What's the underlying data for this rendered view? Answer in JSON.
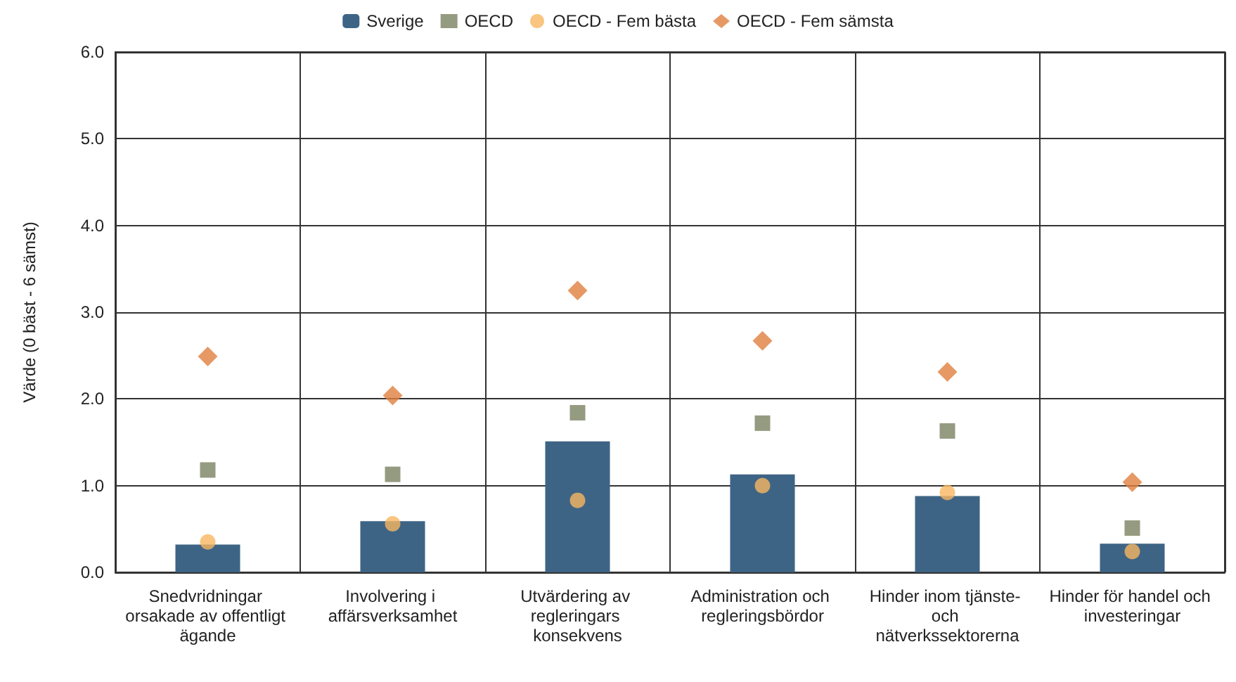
{
  "chart_data": {
    "type": "bar",
    "ylabel": "Värde (0 bäst - 6 sämst)",
    "categories": [
      "Snedvridningar orsakade av offentligt ägande",
      "Involvering i affärsverksamhet",
      "Utvärdering av regleringars konsekvens",
      "Administration och regleringsbördor",
      "Hinder inom tjänste- och nätverkssektorerna",
      "Hinder för handel och investeringar"
    ],
    "series": [
      {
        "name": "Sverige",
        "color": "#3e6485",
        "values": [
          0.32,
          0.59,
          1.51,
          1.13,
          0.88,
          0.33
        ]
      },
      {
        "name": "OECD",
        "type": "scatter",
        "marker": "square",
        "color": "#7b8262",
        "values": [
          1.18,
          1.13,
          1.84,
          1.72,
          1.63,
          0.51
        ]
      },
      {
        "name": "OECD - Fem bästa",
        "type": "scatter",
        "marker": "circle",
        "color": "#f8b660",
        "values": [
          0.35,
          0.56,
          0.83,
          1.0,
          0.92,
          0.24
        ]
      },
      {
        "name": "OECD - Fem sämsta",
        "type": "scatter",
        "marker": "diamond",
        "color": "#e0803f",
        "values": [
          2.49,
          2.04,
          3.25,
          2.67,
          2.31,
          1.04
        ]
      }
    ],
    "ylim": [
      0,
      6
    ],
    "yticks": [
      {
        "value": 0,
        "label": "0.0"
      },
      {
        "value": 1,
        "label": "1.0"
      },
      {
        "value": 2,
        "label": "2.0"
      },
      {
        "value": 3,
        "label": "3.0"
      },
      {
        "value": 4,
        "label": "4.0"
      },
      {
        "value": 5,
        "label": "5.0"
      },
      {
        "value": 6,
        "label": "6.0"
      }
    ],
    "grid": true,
    "legend": "top"
  }
}
